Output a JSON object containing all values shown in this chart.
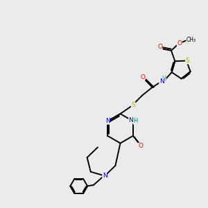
{
  "background_color": "#ebebeb",
  "atom_colors": {
    "C": "#000000",
    "N": "#0000cc",
    "O": "#ff0000",
    "S": "#bbaa00",
    "H": "#008888"
  },
  "figsize": [
    3.0,
    3.0
  ],
  "dpi": 100
}
